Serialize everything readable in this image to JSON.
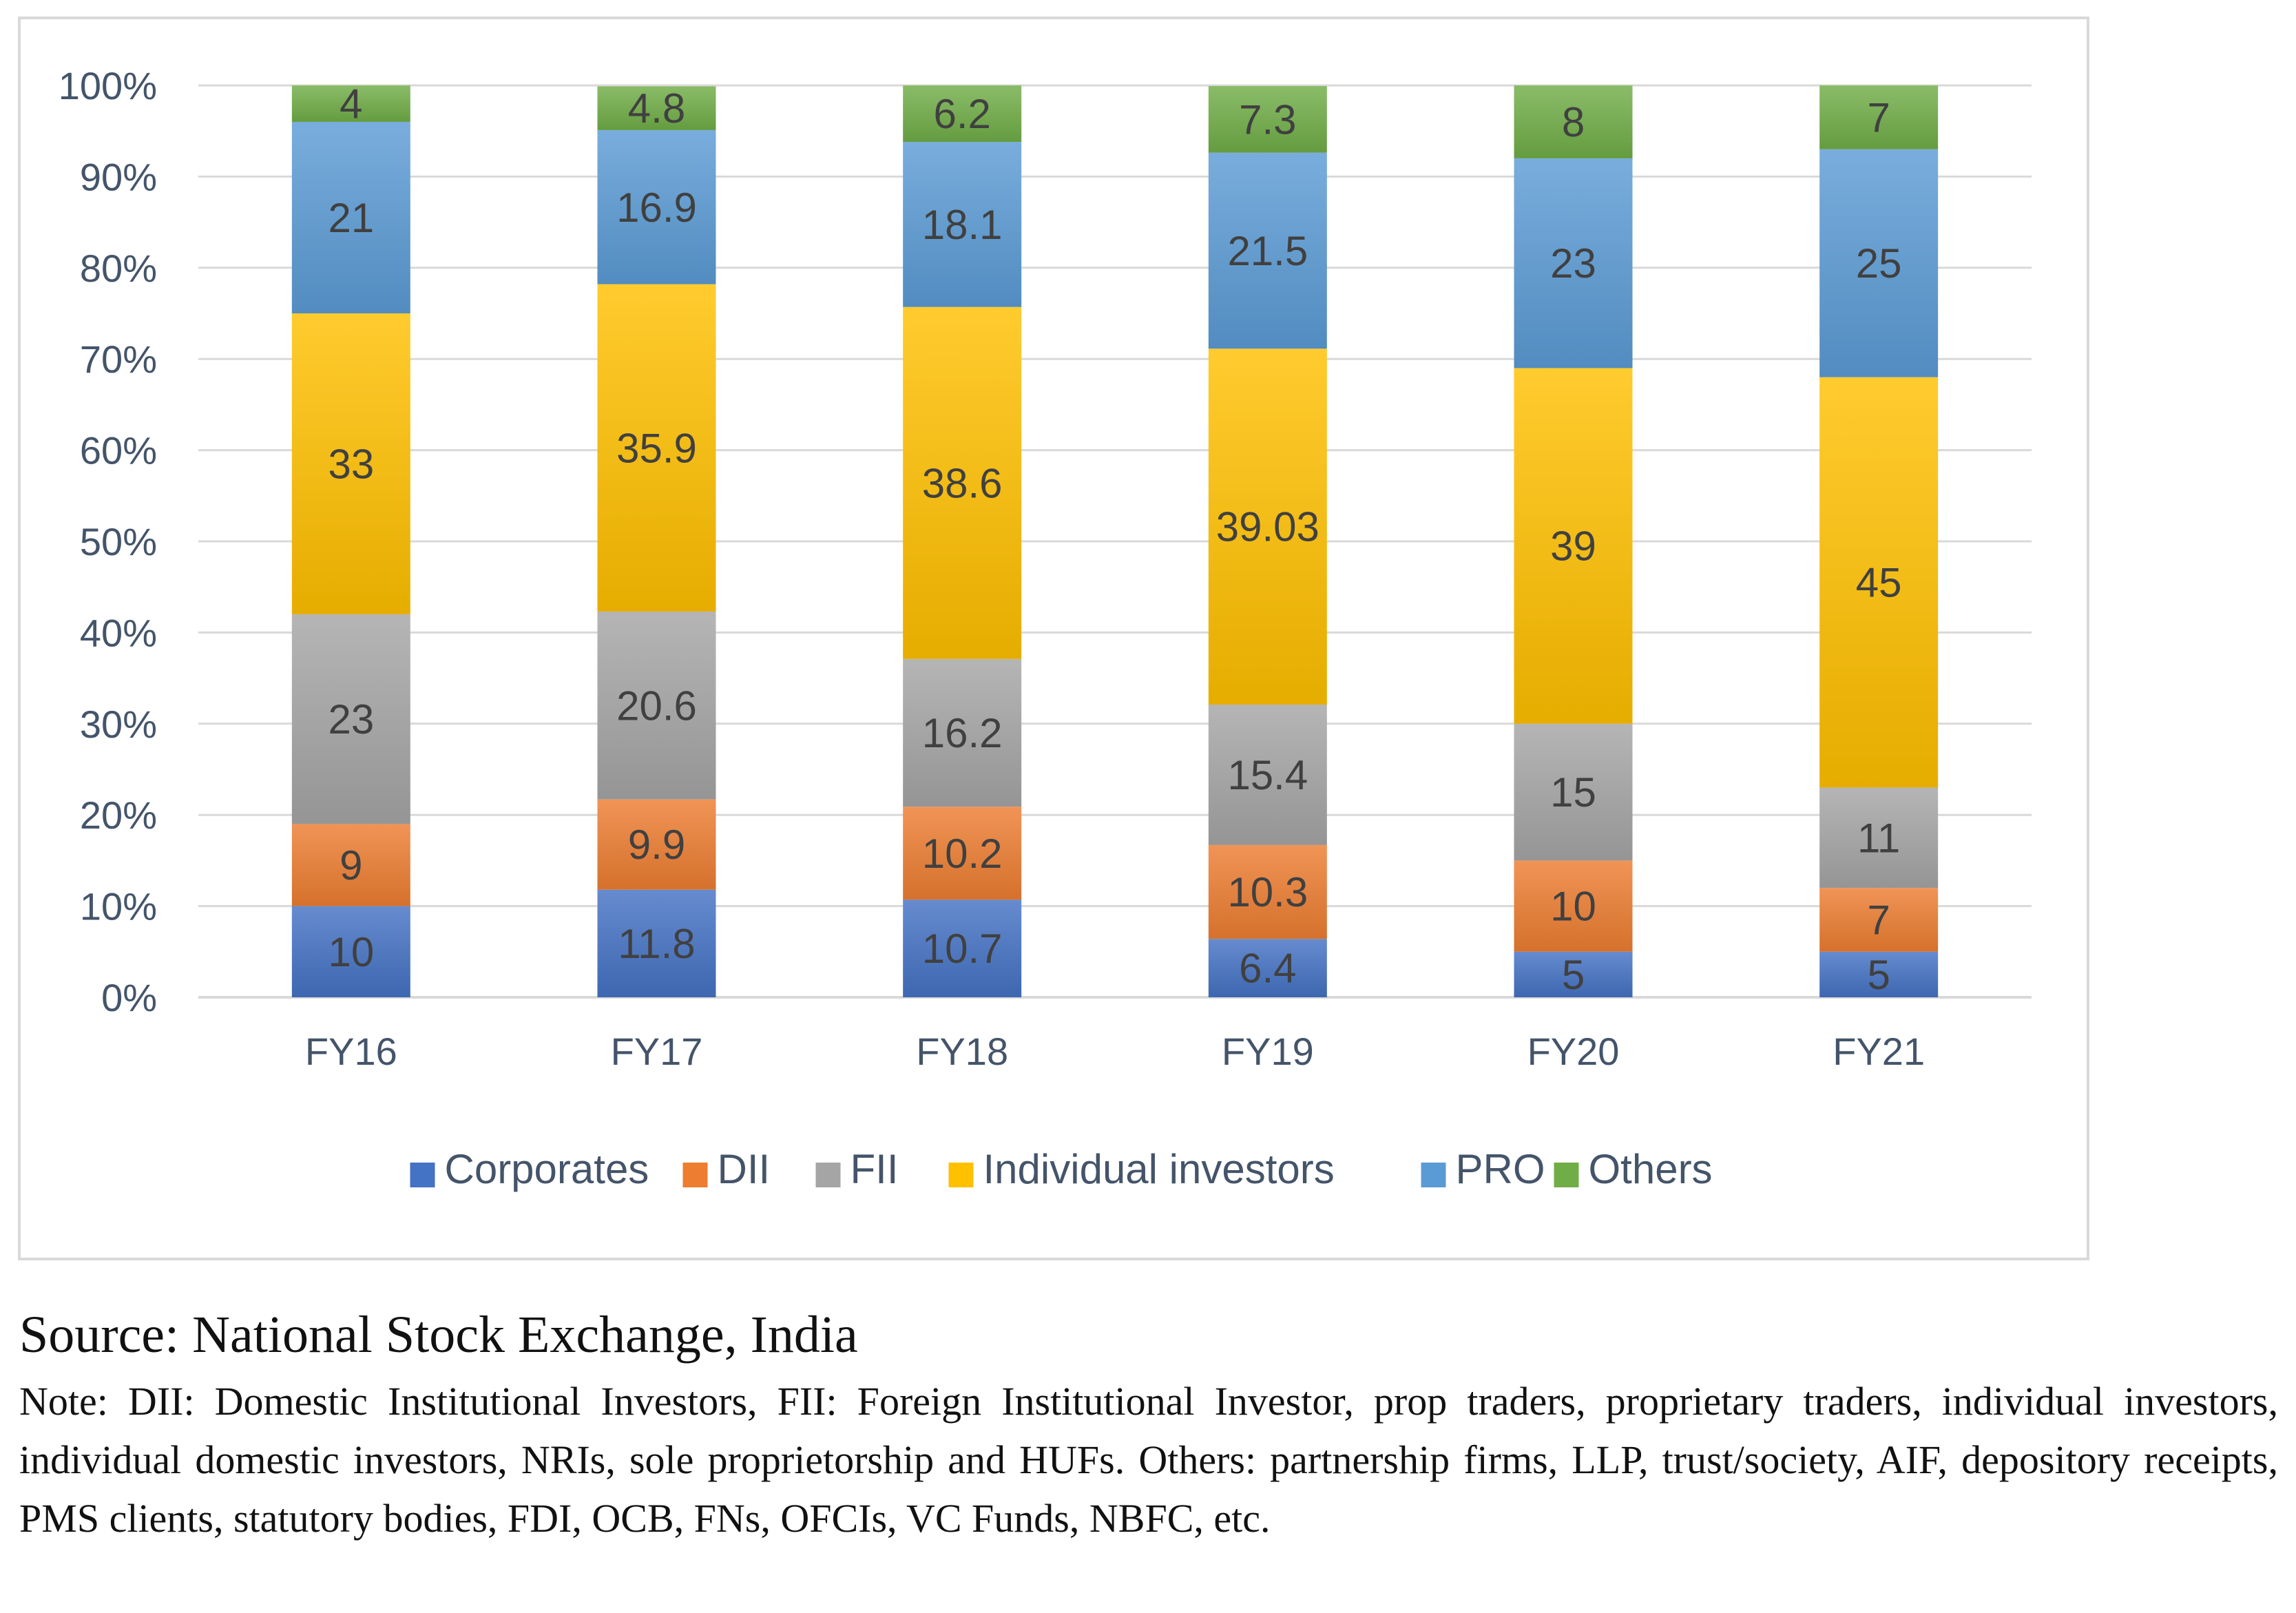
{
  "chart_data": {
    "type": "bar",
    "stacked": true,
    "percent_stacked": true,
    "categories": [
      "FY16",
      "FY17",
      "FY18",
      "FY19",
      "FY20",
      "FY21"
    ],
    "series": [
      {
        "name": "Corporates",
        "color": "#4472c4",
        "values": [
          10,
          11.8,
          10.7,
          6.4,
          5,
          5
        ]
      },
      {
        "name": "DII",
        "color": "#ed7d31",
        "values": [
          9,
          9.9,
          10.2,
          10.3,
          10,
          7
        ]
      },
      {
        "name": "FII",
        "color": "#a5a5a5",
        "values": [
          23,
          20.6,
          16.2,
          15.4,
          15,
          11
        ]
      },
      {
        "name": "Individual investors",
        "color": "#ffc000",
        "values": [
          33,
          35.9,
          38.6,
          39.03,
          39,
          45
        ]
      },
      {
        "name": "PRO",
        "color": "#5b9bd5",
        "values": [
          21,
          16.9,
          18.1,
          21.5,
          23,
          25
        ]
      },
      {
        "name": "Others",
        "color": "#70ad47",
        "values": [
          4,
          4.8,
          6.2,
          7.3,
          8,
          7
        ]
      }
    ],
    "y_ticks": [
      "0%",
      "10%",
      "20%",
      "30%",
      "40%",
      "50%",
      "60%",
      "70%",
      "80%",
      "90%",
      "100%"
    ],
    "ylim": [
      0,
      100
    ],
    "grid": true,
    "legend_position": "bottom",
    "title": "",
    "xlabel": "",
    "ylabel": ""
  },
  "source": "Source: National Stock Exchange, India",
  "note": "Note: DII: Domestic Institutional Investors, FII: Foreign Institutional Investor, prop traders, proprietary traders, individual investors, individual domestic investors, NRIs, sole proprietorship and HUFs. Others: partnership firms, LLP, trust/society, AIF, depository receipts, PMS clients, statutory bodies, FDI, OCB, FNs, OFCIs, VC Funds, NBFC, etc."
}
